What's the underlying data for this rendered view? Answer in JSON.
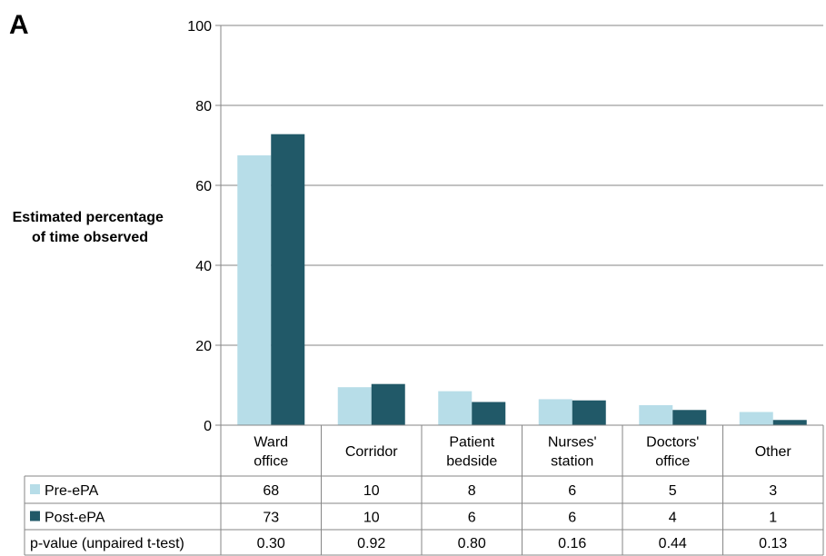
{
  "chart_data": {
    "type": "bar",
    "panel_label": "A",
    "title": "",
    "xlabel": "",
    "ylabel_lines": [
      "Estimated percentage",
      "of time observed"
    ],
    "ylim": [
      0,
      100
    ],
    "yticks": [
      0,
      20,
      40,
      60,
      80,
      100
    ],
    "grid": true,
    "categories": [
      [
        "Ward",
        "office"
      ],
      [
        "Corridor"
      ],
      [
        "Patient",
        "bedside"
      ],
      [
        "Nurses'",
        "station"
      ],
      [
        "Doctors'",
        "office"
      ],
      [
        "Other"
      ]
    ],
    "series": [
      {
        "name": "Pre-ePA",
        "color": "#b7dde8",
        "values": [
          67.5,
          9.5,
          8.5,
          6.5,
          5,
          3.3
        ]
      },
      {
        "name": "Post-ePA",
        "color": "#215968",
        "values": [
          72.8,
          10.3,
          5.8,
          6.2,
          3.8,
          1.3
        ]
      }
    ],
    "data_table": {
      "rows": [
        {
          "label": "Pre-ePA",
          "legend_color": "#b7dde8",
          "cells": [
            "68",
            "10",
            "8",
            "6",
            "5",
            "3"
          ]
        },
        {
          "label": "Post-ePA",
          "legend_color": "#215968",
          "cells": [
            "73",
            "10",
            "6",
            "6",
            "4",
            "1"
          ]
        },
        {
          "label": "p-value (unpaired t-test)",
          "legend_color": null,
          "cells": [
            "0.30",
            "0.92",
            "0.80",
            "0.16",
            "0.44",
            "0.13"
          ]
        }
      ]
    },
    "colors": {
      "gridline": "#868686",
      "table_border": "#868686"
    }
  }
}
